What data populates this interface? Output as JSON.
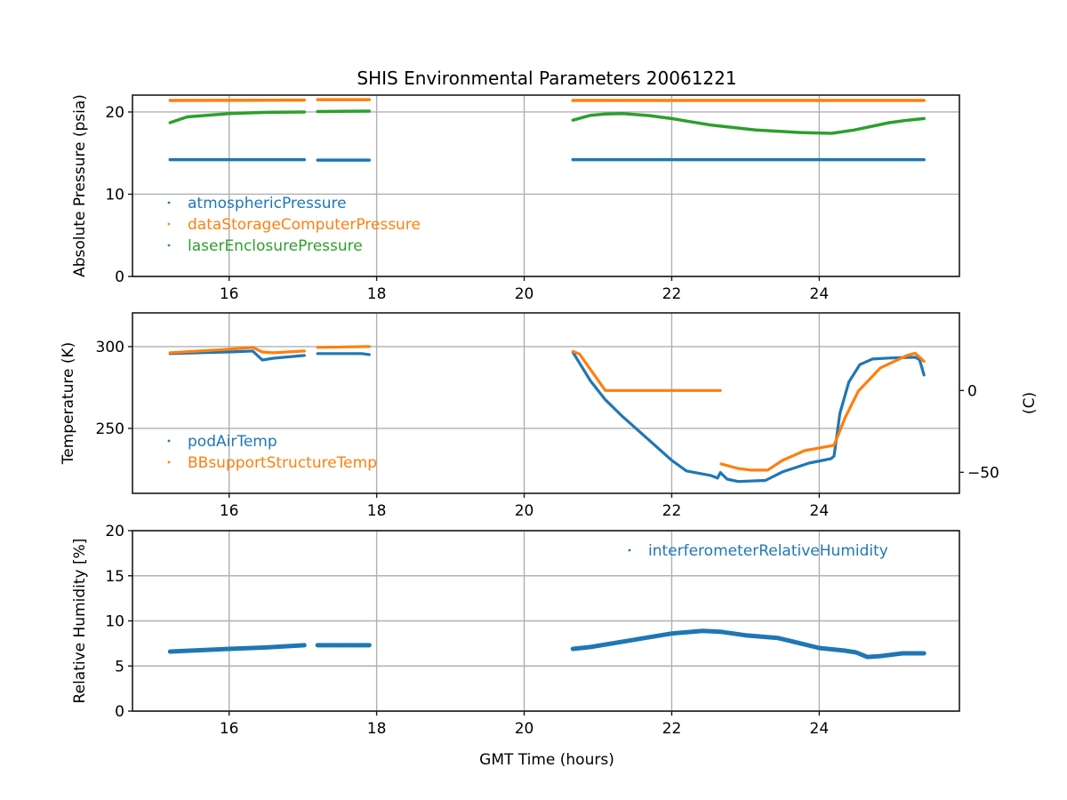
{
  "chart_data": {
    "type": "scatter",
    "title": "SHIS Environmental Parameters 20061221",
    "xlabel": "GMT Time (hours)",
    "x_ticks": [
      16,
      18,
      20,
      22,
      24
    ],
    "x_tick_labels": [
      "16",
      "18",
      "20",
      "22",
      "24"
    ],
    "xlim": [
      14.69,
      25.9
    ],
    "panels": [
      {
        "id": "pressure",
        "ylabel": "Absolute Pressure (psia)",
        "ylim": [
          0,
          22.05
        ],
        "y_ticks": [
          0,
          10,
          20
        ],
        "y_tick_labels": [
          "0",
          "10",
          "20"
        ],
        "grid": true,
        "legend_placement": "lower-left",
        "series": [
          {
            "name": "atmosphericPressure",
            "color": "#1f77b4",
            "segments": [
              [
                [
                  15.2,
                  14.2
                ],
                [
                  17.02,
                  14.2
                ]
              ],
              [
                [
                  17.2,
                  14.15
                ],
                [
                  17.9,
                  14.15
                ]
              ],
              [
                [
                  20.66,
                  14.2
                ],
                [
                  25.42,
                  14.2
                ]
              ]
            ]
          },
          {
            "name": "dataStorageComputerPressure",
            "color": "#ff7f0e",
            "segments": [
              [
                [
                  15.2,
                  21.4
                ],
                [
                  17.02,
                  21.45
                ]
              ],
              [
                [
                  17.2,
                  21.5
                ],
                [
                  17.9,
                  21.5
                ]
              ],
              [
                [
                  20.66,
                  21.4
                ],
                [
                  25.42,
                  21.4
                ]
              ]
            ]
          },
          {
            "name": "laserEnclosurePressure",
            "color": "#2ca02c",
            "segments": [
              [
                [
                  15.2,
                  18.7
                ],
                [
                  15.43,
                  19.4
                ],
                [
                  15.7,
                  19.6
                ],
                [
                  16.0,
                  19.8
                ],
                [
                  16.5,
                  19.95
                ],
                [
                  17.02,
                  20.0
                ]
              ],
              [
                [
                  17.2,
                  20.05
                ],
                [
                  17.9,
                  20.1
                ]
              ],
              [
                [
                  20.66,
                  19.0
                ],
                [
                  20.9,
                  19.6
                ],
                [
                  21.1,
                  19.75
                ],
                [
                  21.34,
                  19.8
                ],
                [
                  21.7,
                  19.55
                ],
                [
                  22.0,
                  19.2
                ],
                [
                  22.54,
                  18.4
                ],
                [
                  23.14,
                  17.8
                ],
                [
                  23.75,
                  17.5
                ],
                [
                  24.17,
                  17.4
                ],
                [
                  24.47,
                  17.8
                ],
                [
                  24.95,
                  18.7
                ],
                [
                  25.2,
                  19.0
                ],
                [
                  25.42,
                  19.2
                ]
              ]
            ]
          }
        ]
      },
      {
        "id": "temperature",
        "ylabel": "Temperature (K)",
        "ylim": [
          210.3,
          320.6
        ],
        "y_ticks": [
          250,
          300
        ],
        "y_tick_labels": [
          "250",
          "300"
        ],
        "secondary_ylabel": "(C)",
        "secondary_ylim": [
          -62.85,
          47.45
        ],
        "secondary_y_ticks": [
          0,
          -50
        ],
        "secondary_y_tick_labels": [
          "0",
          "−50"
        ],
        "grid": true,
        "legend_placement": "lower-left",
        "series": [
          {
            "name": "podAirTemp",
            "color": "#1f77b4",
            "segments": [
              [
                [
                  15.2,
                  295.7
                ],
                [
                  16.0,
                  296.7
                ],
                [
                  16.32,
                  297.3
                ],
                [
                  16.45,
                  291.8
                ],
                [
                  16.6,
                  292.9
                ],
                [
                  17.02,
                  294.6
                ]
              ],
              [
                [
                  17.2,
                  295.7
                ],
                [
                  17.8,
                  295.7
                ],
                [
                  17.9,
                  295.1
                ]
              ],
              [
                [
                  20.66,
                  296.5
                ],
                [
                  20.75,
                  290.0
                ],
                [
                  20.9,
                  279.0
                ],
                [
                  21.1,
                  267.5
                ],
                [
                  21.34,
                  257.0
                ],
                [
                  21.7,
                  242.5
                ],
                [
                  22.0,
                  230.5
                ],
                [
                  22.2,
                  224.0
                ],
                [
                  22.53,
                  221.2
                ],
                [
                  22.62,
                  219.6
                ],
                [
                  22.66,
                  223.0
                ],
                [
                  22.75,
                  219.0
                ],
                [
                  22.9,
                  217.5
                ],
                [
                  23.27,
                  218.2
                ],
                [
                  23.5,
                  223.4
                ],
                [
                  23.86,
                  228.8
                ],
                [
                  24.16,
                  231.5
                ],
                [
                  24.2,
                  233.0
                ],
                [
                  24.28,
                  259.2
                ],
                [
                  24.4,
                  278.3
                ],
                [
                  24.55,
                  289.0
                ],
                [
                  24.72,
                  292.4
                ],
                [
                  24.94,
                  293.0
                ],
                [
                  25.3,
                  293.5
                ],
                [
                  25.36,
                  292.0
                ],
                [
                  25.42,
                  282.6
                ]
              ]
            ]
          },
          {
            "name": "BBsupportStructureTemp",
            "color": "#ff7f0e",
            "segments": [
              [
                [
                  15.2,
                  296.2
                ],
                [
                  16.0,
                  298.4
                ],
                [
                  16.32,
                  299.5
                ],
                [
                  16.45,
                  296.7
                ],
                [
                  16.6,
                  296.2
                ],
                [
                  17.02,
                  297.3
                ]
              ],
              [
                [
                  17.2,
                  299.5
                ],
                [
                  17.9,
                  300.0
                ]
              ],
              [
                [
                  20.66,
                  297.0
                ],
                [
                  20.75,
                  295.5
                ],
                [
                  21.1,
                  273.15
                ],
                [
                  22.66,
                  273.15
                ]
              ],
              [
                [
                  22.67,
                  228.3
                ],
                [
                  22.9,
                  225.5
                ],
                [
                  23.08,
                  224.5
                ],
                [
                  23.3,
                  224.5
                ],
                [
                  23.5,
                  230.4
                ],
                [
                  23.8,
                  236.4
                ],
                [
                  24.2,
                  239.7
                ],
                [
                  24.35,
                  256.5
                ],
                [
                  24.53,
                  272.8
                ],
                [
                  24.83,
                  287.0
                ],
                [
                  25.19,
                  294.6
                ],
                [
                  25.3,
                  296.0
                ],
                [
                  25.42,
                  291.0
                ]
              ]
            ]
          }
        ]
      },
      {
        "id": "humidity",
        "ylabel": "Relative Humidity [%]",
        "ylim": [
          0,
          20
        ],
        "y_ticks": [
          0,
          5,
          10,
          15,
          20
        ],
        "y_tick_labels": [
          "0",
          "5",
          "10",
          "15",
          "20"
        ],
        "grid": true,
        "legend_placement": "upper-right",
        "series": [
          {
            "name": "interferometerRelativeHumidity",
            "color": "#1f77b4",
            "segments": [
              [
                [
                  15.2,
                  6.6
                ],
                [
                  16.0,
                  6.9
                ],
                [
                  16.5,
                  7.05
                ],
                [
                  17.02,
                  7.3
                ]
              ],
              [
                [
                  17.2,
                  7.3
                ],
                [
                  17.9,
                  7.3
                ]
              ],
              [
                [
                  20.66,
                  6.9
                ],
                [
                  20.9,
                  7.1
                ],
                [
                  21.34,
                  7.7
                ],
                [
                  21.7,
                  8.2
                ],
                [
                  22.0,
                  8.6
                ],
                [
                  22.42,
                  8.9
                ],
                [
                  22.66,
                  8.8
                ],
                [
                  23.0,
                  8.4
                ],
                [
                  23.44,
                  8.1
                ],
                [
                  23.7,
                  7.6
                ],
                [
                  24.0,
                  7.0
                ],
                [
                  24.35,
                  6.7
                ],
                [
                  24.5,
                  6.5
                ],
                [
                  24.65,
                  6.0
                ],
                [
                  24.83,
                  6.1
                ],
                [
                  25.13,
                  6.4
                ],
                [
                  25.42,
                  6.4
                ]
              ]
            ]
          }
        ]
      }
    ]
  }
}
